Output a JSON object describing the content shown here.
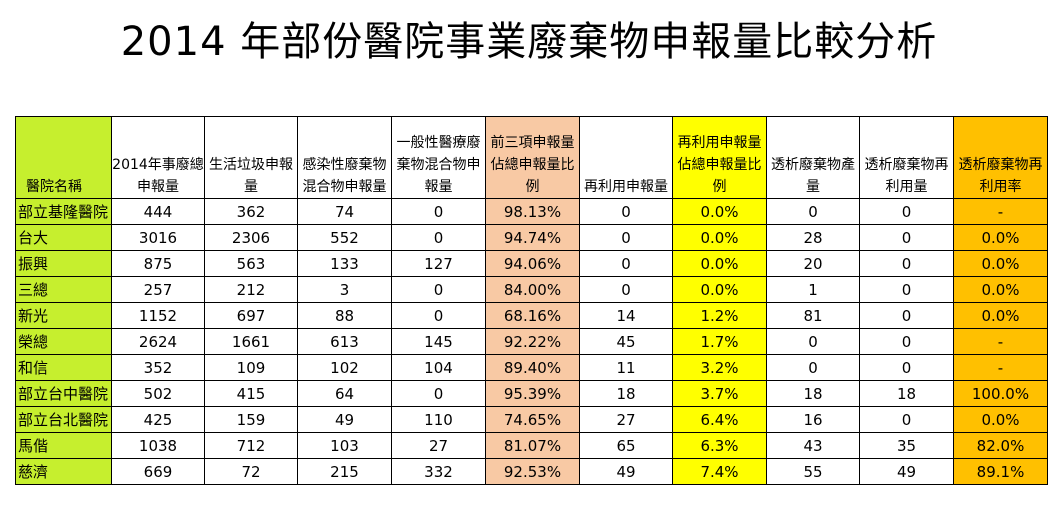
{
  "title": "2014 年部份醫院事業廢棄物申報量比較分析",
  "headers": {
    "name": "醫院名稱",
    "total": "2014年事廢總申報量",
    "household": "生活垃圾申報量",
    "infectious": "感染性廢棄物混合物申報量",
    "general": "一般性醫療廢棄物混合物申報量",
    "top3_ratio": "前三項申報量佔總申報量比例",
    "reuse": "再利用申報量",
    "reuse_ratio": "再利用申報量佔總申報量比例",
    "dialysis": "透析廢棄物產量",
    "dialysis_reuse": "透析廢棄物再利用量",
    "dialysis_rate": "透析廢棄物再利用率"
  },
  "colors": {
    "name_col": "#c6ef2e",
    "top3_col": "#f8c9a4",
    "reuse_ratio_col": "#ffff00",
    "rate_col": "#ffc000"
  },
  "rows": [
    {
      "name": "部立基隆醫院",
      "total": "444",
      "household": "362",
      "infectious": "74",
      "general": "0",
      "top3_ratio": "98.13%",
      "reuse": "0",
      "reuse_ratio": "0.0%",
      "dialysis": "0",
      "dialysis_reuse": "0",
      "dialysis_rate": "-"
    },
    {
      "name": "台大",
      "total": "3016",
      "household": "2306",
      "infectious": "552",
      "general": "0",
      "top3_ratio": "94.74%",
      "reuse": "0",
      "reuse_ratio": "0.0%",
      "dialysis": "28",
      "dialysis_reuse": "0",
      "dialysis_rate": "0.0%"
    },
    {
      "name": "振興",
      "total": "875",
      "household": "563",
      "infectious": "133",
      "general": "127",
      "top3_ratio": "94.06%",
      "reuse": "0",
      "reuse_ratio": "0.0%",
      "dialysis": "20",
      "dialysis_reuse": "0",
      "dialysis_rate": "0.0%"
    },
    {
      "name": "三總",
      "total": "257",
      "household": "212",
      "infectious": "3",
      "general": "0",
      "top3_ratio": "84.00%",
      "reuse": "0",
      "reuse_ratio": "0.0%",
      "dialysis": "1",
      "dialysis_reuse": "0",
      "dialysis_rate": "0.0%"
    },
    {
      "name": "新光",
      "total": "1152",
      "household": "697",
      "infectious": "88",
      "general": "0",
      "top3_ratio": "68.16%",
      "reuse": "14",
      "reuse_ratio": "1.2%",
      "dialysis": "81",
      "dialysis_reuse": "0",
      "dialysis_rate": "0.0%"
    },
    {
      "name": "榮總",
      "total": "2624",
      "household": "1661",
      "infectious": "613",
      "general": "145",
      "top3_ratio": "92.22%",
      "reuse": "45",
      "reuse_ratio": "1.7%",
      "dialysis": "0",
      "dialysis_reuse": "0",
      "dialysis_rate": "-"
    },
    {
      "name": "和信",
      "total": "352",
      "household": "109",
      "infectious": "102",
      "general": "104",
      "top3_ratio": "89.40%",
      "reuse": "11",
      "reuse_ratio": "3.2%",
      "dialysis": "0",
      "dialysis_reuse": "0",
      "dialysis_rate": "-"
    },
    {
      "name": "部立台中醫院",
      "total": "502",
      "household": "415",
      "infectious": "64",
      "general": "0",
      "top3_ratio": "95.39%",
      "reuse": "18",
      "reuse_ratio": "3.7%",
      "dialysis": "18",
      "dialysis_reuse": "18",
      "dialysis_rate": "100.0%"
    },
    {
      "name": "部立台北醫院",
      "total": "425",
      "household": "159",
      "infectious": "49",
      "general": "110",
      "top3_ratio": "74.65%",
      "reuse": "27",
      "reuse_ratio": "6.4%",
      "dialysis": "16",
      "dialysis_reuse": "0",
      "dialysis_rate": "0.0%"
    },
    {
      "name": "馬偕",
      "total": "1038",
      "household": "712",
      "infectious": "103",
      "general": "27",
      "top3_ratio": "81.07%",
      "reuse": "65",
      "reuse_ratio": "6.3%",
      "dialysis": "43",
      "dialysis_reuse": "35",
      "dialysis_rate": "82.0%"
    },
    {
      "name": "慈濟",
      "total": "669",
      "household": "72",
      "infectious": "215",
      "general": "332",
      "top3_ratio": "92.53%",
      "reuse": "49",
      "reuse_ratio": "7.4%",
      "dialysis": "55",
      "dialysis_reuse": "49",
      "dialysis_rate": "89.1%"
    }
  ]
}
